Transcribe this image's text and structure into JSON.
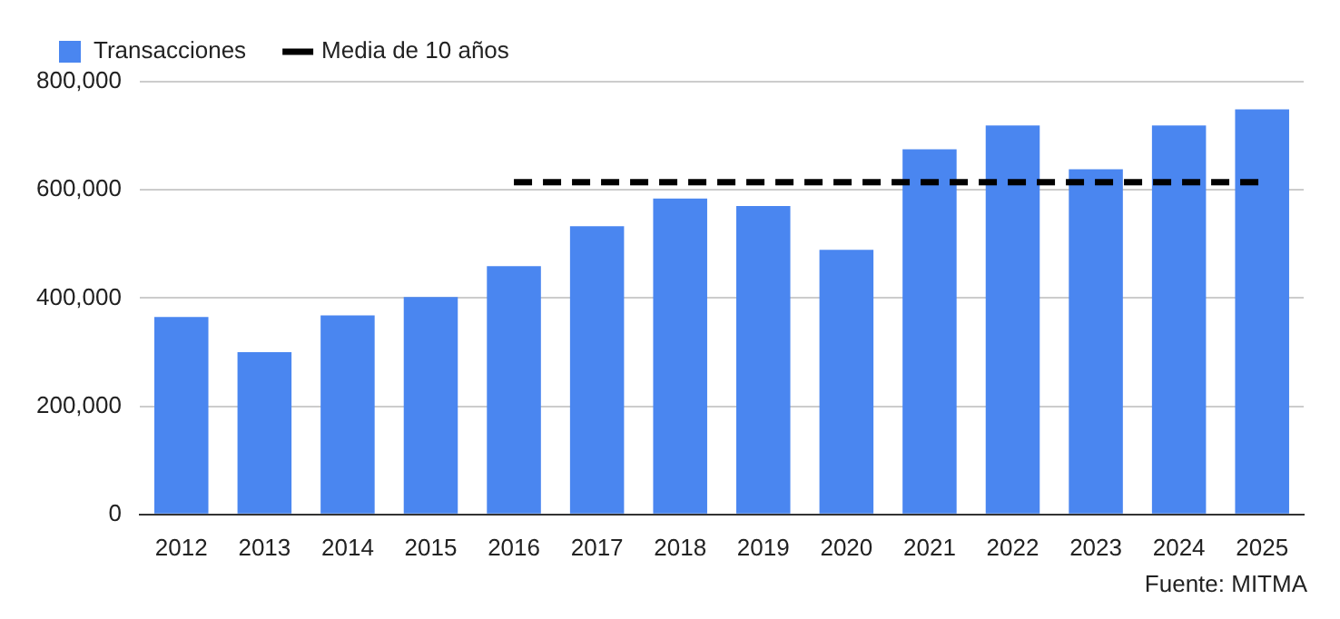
{
  "chart_data": {
    "type": "bar",
    "categories": [
      "2012",
      "2013",
      "2014",
      "2015",
      "2016",
      "2017",
      "2018",
      "2019",
      "2020",
      "2021",
      "2022",
      "2023",
      "2024",
      "2025"
    ],
    "series": [
      {
        "name": "Transacciones",
        "color": "#4a86f0",
        "values": [
          365000,
          300000,
          368000,
          402000,
          459000,
          533000,
          584000,
          570000,
          489000,
          675000,
          719000,
          638000,
          719000,
          749000
        ]
      },
      {
        "name": "Media de 10 años",
        "type": "line",
        "color": "#000000",
        "line_style": "dashed",
        "marker": "none",
        "values": [
          null,
          null,
          null,
          null,
          614000,
          614000,
          614000,
          614000,
          614000,
          614000,
          614000,
          614000,
          614000,
          614000
        ]
      }
    ],
    "ylim": [
      0,
      800000
    ],
    "yticks": [
      0,
      {
        "value": 200000,
        "label": "200,000"
      },
      {
        "value": 400000,
        "label": "400,000"
      },
      {
        "value": 600000,
        "label": "600,000"
      },
      {
        "value": 800000,
        "label": "800,000"
      }
    ],
    "grid": "y",
    "legend": "top left",
    "annotations": [
      "Fuente: MITMA"
    ]
  }
}
